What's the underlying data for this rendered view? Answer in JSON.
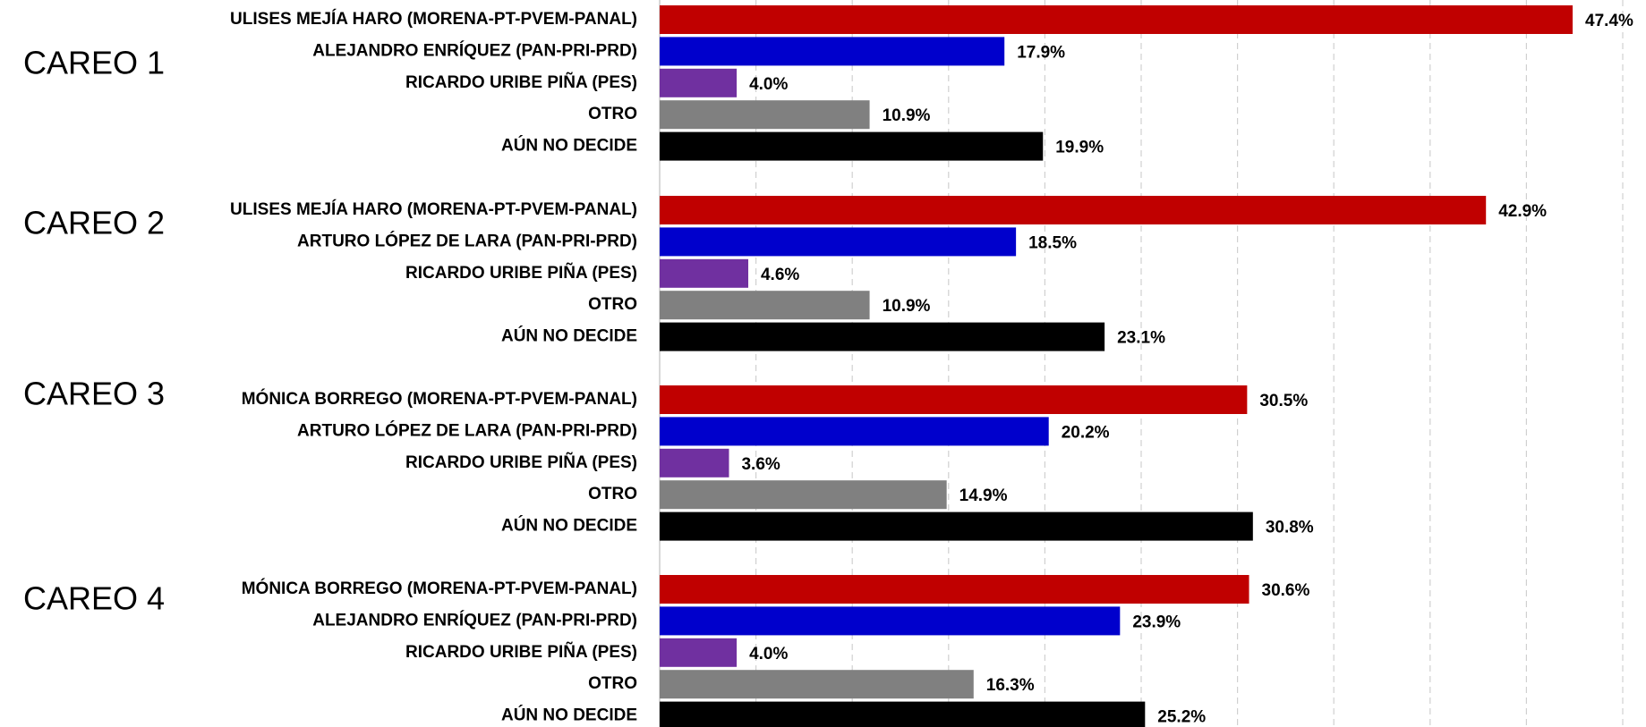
{
  "chart_data": {
    "type": "bar",
    "orientation": "horizontal",
    "xlim": [
      0,
      50
    ],
    "xticks": [
      0,
      5,
      10,
      15,
      20,
      25,
      30,
      35,
      40,
      45,
      50
    ],
    "grid": true,
    "colors": [
      "#c00000",
      "#0000cc",
      "#7030a0",
      "#808080",
      "#000000"
    ],
    "groups": [
      {
        "label": "CAREO 1",
        "categories": [
          "ULISES MEJÍA HARO (MORENA-PT-PVEM-PANAL)",
          "ALEJANDRO ENRÍQUEZ (PAN-PRI-PRD)",
          "RICARDO URIBE PIÑA (PES)",
          "OTRO",
          "AÚN NO DECIDE"
        ],
        "values": [
          47.4,
          17.9,
          4.0,
          10.9,
          19.9
        ],
        "value_labels": [
          "47.4%",
          "17.9%",
          "4.0%",
          "10.9%",
          "19.9%"
        ]
      },
      {
        "label": "CAREO 2",
        "categories": [
          "ULISES MEJÍA HARO (MORENA-PT-PVEM-PANAL)",
          "ARTURO LÓPEZ DE LARA (PAN-PRI-PRD)",
          "RICARDO URIBE PIÑA (PES)",
          "OTRO",
          "AÚN NO DECIDE"
        ],
        "values": [
          42.9,
          18.5,
          4.6,
          10.9,
          23.1
        ],
        "value_labels": [
          "42.9%",
          "18.5%",
          "4.6%",
          "10.9%",
          "23.1%"
        ]
      },
      {
        "label": "CAREO 3",
        "categories": [
          "MÓNICA BORREGO (MORENA-PT-PVEM-PANAL)",
          "ARTURO LÓPEZ DE LARA (PAN-PRI-PRD)",
          "RICARDO URIBE PIÑA (PES)",
          "OTRO",
          "AÚN NO DECIDE"
        ],
        "values": [
          30.5,
          20.2,
          3.6,
          14.9,
          30.8
        ],
        "value_labels": [
          "30.5%",
          "20.2%",
          "3.6%",
          "14.9%",
          "30.8%"
        ]
      },
      {
        "label": "CAREO 4",
        "categories": [
          "MÓNICA BORREGO (MORENA-PT-PVEM-PANAL)",
          "ALEJANDRO ENRÍQUEZ (PAN-PRI-PRD)",
          "RICARDO URIBE PIÑA (PES)",
          "OTRO",
          "AÚN NO DECIDE"
        ],
        "values": [
          30.6,
          23.9,
          4.0,
          16.3,
          25.2
        ],
        "value_labels": [
          "30.6%",
          "23.9%",
          "4.0%",
          "16.3%",
          "25.2%"
        ]
      }
    ]
  }
}
